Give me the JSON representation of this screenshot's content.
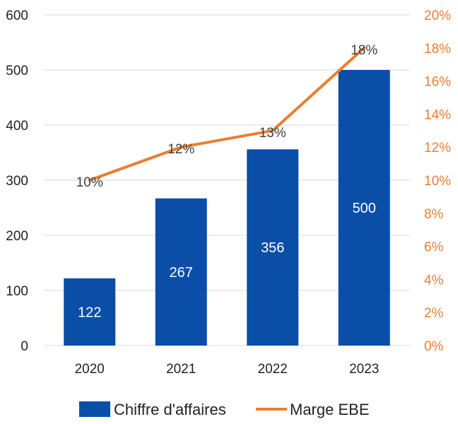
{
  "chart_data": {
    "type": "bar+line",
    "categories": [
      "2020",
      "2021",
      "2022",
      "2023"
    ],
    "series": [
      {
        "name": "Chiffre d'affaires",
        "type": "bar",
        "axis": "left",
        "values": [
          122,
          267,
          356,
          500
        ],
        "data_labels": [
          "122",
          "267",
          "356",
          "500"
        ],
        "color": "#0a4ea8"
      },
      {
        "name": "Marge EBE",
        "type": "line",
        "axis": "right",
        "values": [
          10,
          12,
          13,
          18
        ],
        "data_labels": [
          "10%",
          "12%",
          "13%",
          "18%"
        ],
        "color": "#ed7d31"
      }
    ],
    "y_left": {
      "min": 0,
      "max": 600,
      "step": 100,
      "tick_labels": [
        "0",
        "100",
        "200",
        "300",
        "400",
        "500",
        "600"
      ]
    },
    "y_right": {
      "min": 0,
      "max": 20,
      "step": 2,
      "tick_labels": [
        "0%",
        "2%",
        "4%",
        "6%",
        "8%",
        "10%",
        "12%",
        "14%",
        "16%",
        "18%",
        "20%"
      ],
      "color": "#ed7d31"
    },
    "grid": true,
    "gridline_color": "#d9d9d9",
    "legend_position": "bottom"
  }
}
